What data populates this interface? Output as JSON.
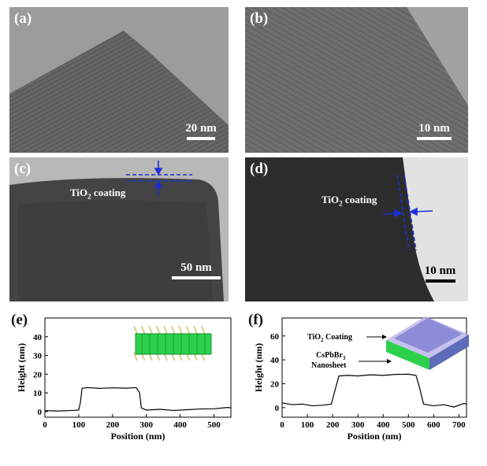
{
  "panels": {
    "a": {
      "label": "(a)",
      "scale": "20 nm"
    },
    "b": {
      "label": "(b)",
      "scale": "10 nm"
    },
    "c": {
      "label": "(c)",
      "scale": "50 nm",
      "annotation_main": "TiO",
      "annotation_sub": "2",
      "annotation_tail": " coating"
    },
    "d": {
      "label": "(d)",
      "scale": "10 nm",
      "annotation_main": "TiO",
      "annotation_sub": "2",
      "annotation_tail": " coating"
    },
    "e": {
      "label": "(e)"
    },
    "f": {
      "label": "(f)",
      "inset_coating_main": "TiO",
      "inset_coating_sub": "2",
      "inset_coating_tail": " Coating",
      "inset_sheet_line1_main": "CsPbBr",
      "inset_sheet_line1_sub": "3",
      "inset_sheet_line2": "Nanosheet"
    }
  },
  "colors": {
    "annotation_blue": "#1f2fd6",
    "inset_green": "#2bd14a",
    "inset_purple": "#9a8ad6"
  },
  "chart_data": [
    {
      "type": "line",
      "panel": "e",
      "xlabel": "Position (nm)",
      "ylabel": "Height (nm)",
      "xlim": [
        0,
        550
      ],
      "ylim": [
        -3,
        50
      ],
      "xticks": [
        0,
        100,
        200,
        300,
        400,
        500
      ],
      "yticks": [
        0,
        10,
        20,
        30,
        40
      ],
      "series": [
        {
          "x": [
            0,
            40,
            80,
            100,
            105,
            110,
            130,
            160,
            200,
            240,
            270,
            280,
            285,
            300,
            340,
            380,
            420,
            460,
            500,
            540,
            550
          ],
          "y": [
            0.5,
            0.3,
            0.6,
            0.8,
            5,
            12.5,
            12.8,
            12.4,
            12.7,
            12.5,
            12.8,
            10,
            2,
            0.8,
            1.2,
            0.6,
            1.0,
            1.4,
            1.5,
            2.2,
            2.0
          ]
        }
      ]
    },
    {
      "type": "line",
      "panel": "f",
      "xlabel": "Position (nm)",
      "ylabel": "Height (nm)",
      "xlim": [
        0,
        730
      ],
      "ylim": [
        -8,
        75
      ],
      "xticks": [
        0,
        100,
        200,
        300,
        400,
        500,
        600,
        700
      ],
      "yticks": [
        0,
        20,
        40,
        60
      ],
      "series": [
        {
          "x": [
            0,
            40,
            80,
            120,
            160,
            195,
            210,
            225,
            260,
            300,
            350,
            400,
            450,
            500,
            530,
            545,
            560,
            600,
            640,
            680,
            720,
            730
          ],
          "y": [
            4,
            2.5,
            3,
            1.5,
            2,
            3,
            15,
            26.5,
            27,
            26.5,
            27.5,
            27,
            27.8,
            28,
            27,
            16,
            3,
            1.5,
            2.5,
            0.5,
            3.5,
            3
          ]
        }
      ]
    }
  ]
}
